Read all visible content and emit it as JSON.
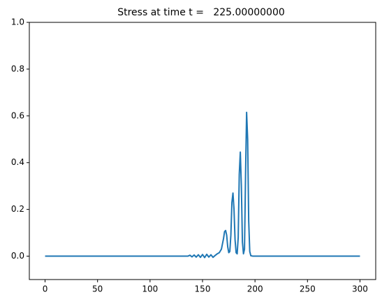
{
  "chart_data": {
    "type": "line",
    "title": "Stress at time t =   225.00000000",
    "x": [
      0,
      130,
      136,
      138,
      140,
      142,
      144,
      146,
      148,
      150,
      152,
      154,
      156,
      158,
      160,
      162,
      164,
      166,
      168,
      170,
      171,
      172,
      173,
      174,
      175,
      176,
      177,
      178,
      179,
      180,
      181,
      182,
      183,
      184,
      185,
      186,
      187,
      188,
      189,
      190,
      191,
      192,
      193,
      194,
      195,
      196,
      198,
      300
    ],
    "series": [
      {
        "color": "#1f77b4",
        "values": [
          0,
          0,
          0,
          0.004,
          -0.003,
          0.005,
          -0.004,
          0.006,
          -0.005,
          0.007,
          -0.006,
          0.008,
          -0.004,
          0.006,
          -0.005,
          0.003,
          0.01,
          0.015,
          0.03,
          0.075,
          0.105,
          0.11,
          0.09,
          0.04,
          0.015,
          0.02,
          0.09,
          0.23,
          0.27,
          0.2,
          0.07,
          0.015,
          0.01,
          0.08,
          0.35,
          0.445,
          0.3,
          0.06,
          0.01,
          0.03,
          0.35,
          0.615,
          0.5,
          0.15,
          0.02,
          0.002,
          0,
          0
        ]
      }
    ],
    "xlim": [
      -15,
      315
    ],
    "xticks": [
      0,
      50,
      100,
      150,
      200,
      250,
      300
    ],
    "ylim": [
      -0.1,
      1.0
    ],
    "yticks": [
      {
        "value": 0,
        "label": "0.0"
      },
      0.2,
      0.4,
      0.6,
      0.8,
      {
        "value": 1,
        "label": "1.0"
      }
    ],
    "grid": false
  }
}
